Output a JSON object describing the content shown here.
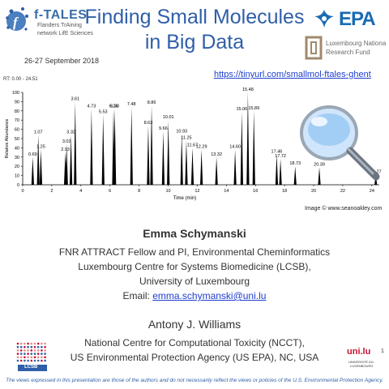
{
  "header": {
    "title_line1": "Finding Small Molecules",
    "title_line2": "in Big Data",
    "url": "https://tinyurl.com/smallmol-ftales-ghent"
  },
  "ftales_logo": {
    "word": "f-TALES",
    "sub1": "Flanders TrAining",
    "sub2": "network LifE Sciences",
    "date": "26-27 September 2018"
  },
  "epa_logo": {
    "text": "EPA"
  },
  "lnrf_logo": {
    "line1": "Luxembourg Nationa",
    "line2": "Research Fund"
  },
  "chart_data": {
    "type": "area",
    "rt_label": "RT: 0.00 - 24.51",
    "xlabel": "Time (min)",
    "ylabel": "Relative Abundance",
    "xlim": [
      0,
      24.51
    ],
    "ylim": [
      0,
      100
    ],
    "xticks": [
      0,
      2,
      4,
      6,
      8,
      10,
      12,
      14,
      16,
      18,
      20,
      22,
      24
    ],
    "yticks": [
      0,
      10,
      20,
      30,
      40,
      50,
      60,
      70,
      80,
      90,
      100
    ],
    "peaks": [
      {
        "x": 0.69,
        "y": 30
      },
      {
        "x": 1.07,
        "y": 54
      },
      {
        "x": 1.25,
        "y": 38
      },
      {
        "x": 2.93,
        "y": 35
      },
      {
        "x": 3.02,
        "y": 44
      },
      {
        "x": 3.32,
        "y": 54
      },
      {
        "x": 3.61,
        "y": 90
      },
      {
        "x": 4.73,
        "y": 82
      },
      {
        "x": 5.53,
        "y": 76
      },
      {
        "x": 6.33,
        "y": 82
      },
      {
        "x": 6.24,
        "y": 82
      },
      {
        "x": 7.48,
        "y": 84
      },
      {
        "x": 8.63,
        "y": 64
      },
      {
        "x": 8.86,
        "y": 86
      },
      {
        "x": 9.66,
        "y": 58
      },
      {
        "x": 10.01,
        "y": 70
      },
      {
        "x": 10.93,
        "y": 55
      },
      {
        "x": 11.25,
        "y": 48
      },
      {
        "x": 11.67,
        "y": 40
      },
      {
        "x": 12.29,
        "y": 38
      },
      {
        "x": 13.32,
        "y": 30
      },
      {
        "x": 14.6,
        "y": 38
      },
      {
        "x": 15.06,
        "y": 79
      },
      {
        "x": 15.48,
        "y": 100
      },
      {
        "x": 15.89,
        "y": 80
      },
      {
        "x": 17.46,
        "y": 33
      },
      {
        "x": 17.72,
        "y": 28
      },
      {
        "x": 18.73,
        "y": 20
      },
      {
        "x": 20.39,
        "y": 19
      },
      {
        "x": 24.27,
        "y": 11
      }
    ],
    "labels": [
      {
        "text": "0.69",
        "x": 0.69,
        "y": 30
      },
      {
        "text": "1.07",
        "x": 1.07,
        "y": 54
      },
      {
        "text": "1.25",
        "x": 1.25,
        "y": 38
      },
      {
        "text": "2.93",
        "x": 2.93,
        "y": 35
      },
      {
        "text": "3.02",
        "x": 3.02,
        "y": 44
      },
      {
        "text": "3.32",
        "x": 3.32,
        "y": 54
      },
      {
        "text": "3.61",
        "x": 3.61,
        "y": 90
      },
      {
        "text": "4.73",
        "x": 4.73,
        "y": 82
      },
      {
        "text": "5.53",
        "x": 5.53,
        "y": 76
      },
      {
        "text": "6.33",
        "x": 6.33,
        "y": 82
      },
      {
        "text": "6.24",
        "x": 6.24,
        "y": 82
      },
      {
        "text": "7.48",
        "x": 7.48,
        "y": 84
      },
      {
        "text": "8.63",
        "x": 8.63,
        "y": 64
      },
      {
        "text": "8.86",
        "x": 8.86,
        "y": 86
      },
      {
        "text": "9.66",
        "x": 9.66,
        "y": 58
      },
      {
        "text": "10.01",
        "x": 10.01,
        "y": 70
      },
      {
        "text": "10.93",
        "x": 10.93,
        "y": 55
      },
      {
        "text": "11.25",
        "x": 11.25,
        "y": 48
      },
      {
        "text": "11.67",
        "x": 11.67,
        "y": 40
      },
      {
        "text": "12.29",
        "x": 12.29,
        "y": 38
      },
      {
        "text": "13.32",
        "x": 13.32,
        "y": 30
      },
      {
        "text": "14.60",
        "x": 14.6,
        "y": 38
      },
      {
        "text": "15.06",
        "x": 15.06,
        "y": 79
      },
      {
        "text": "15.48",
        "x": 15.48,
        "y": 100
      },
      {
        "text": "15.89",
        "x": 15.89,
        "y": 80
      },
      {
        "text": "17.46",
        "x": 17.46,
        "y": 33
      },
      {
        "text": "17.72",
        "x": 17.72,
        "y": 28
      },
      {
        "text": "18.73",
        "x": 18.73,
        "y": 20
      },
      {
        "text": "20.39",
        "x": 20.39,
        "y": 19
      },
      {
        "text": "24.27",
        "x": 24.27,
        "y": 11
      }
    ]
  },
  "image_credit": "Image © www.seanoakley.com",
  "author1": {
    "name": "Emma Schymanski",
    "line1": "FNR ATTRACT Fellow and PI, Environmental Cheminformatics",
    "line2": "Luxembourg Centre for Systems Biomedicine (LCSB),",
    "line3": "University of Luxembourg",
    "email_label": "Email: ",
    "email": "emma.schymanski@uni.lu"
  },
  "author2": {
    "name": "Antony J. Williams",
    "line1": "National Centre for Computational Toxicity (NCCT),",
    "line2": "US Environmental Protection Agency (US EPA), NC, USA"
  },
  "lcsb_logo": {
    "text": "LCSB"
  },
  "uni_logo": {
    "mark": "uni.lu",
    "line1": "UNIVERSITÉ DU",
    "line2": "LUXEMBOURG"
  },
  "page_number": "1",
  "disclaimer": "The views expressed in this presentation are those of the authors and do not necessarily reflect the views or policies of the U.S. Environmental Protection Agency.",
  "colors": {
    "title": "#2f5fa8",
    "link": "#1f3fcf",
    "epa": "#1a6bb3",
    "uni": "#c8102e"
  },
  "icons": [
    "magnifying-glass-icon",
    "ftales-logo-icon",
    "epa-logo-icon",
    "lnrf-logo-icon",
    "lcsb-logo-icon",
    "uni-lu-logo-icon"
  ]
}
